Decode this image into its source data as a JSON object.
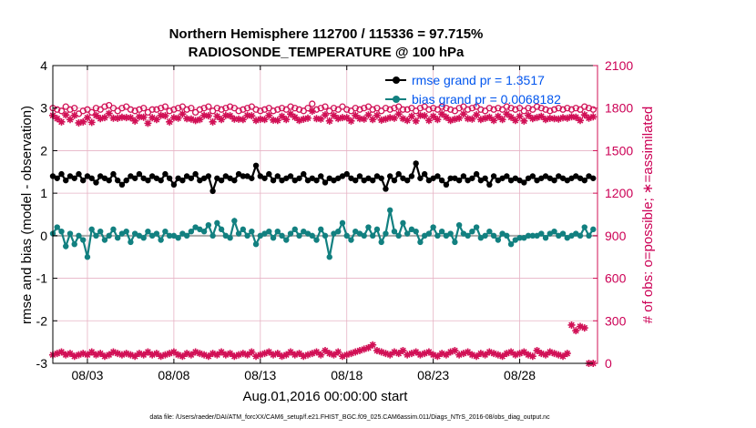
{
  "chart_data": {
    "type": "line",
    "title_line1": "Northern Hemisphere 112700 / 115336 = 97.715%",
    "title_line2": "RADIOSONDE_TEMPERATURE @ 100 hPa",
    "xlabel": "Aug.01,2016 00:00:00 start",
    "ylabel_left": "rmse and bias (model - observation)",
    "ylabel_right": "# of obs: o=possible; ∗=assimilated",
    "xlim": [
      0,
      31.5
    ],
    "ylim_left": [
      -3,
      4
    ],
    "ylim_right": [
      0,
      2100
    ],
    "x_ticks": [
      {
        "x": 2,
        "label": "08/03"
      },
      {
        "x": 7,
        "label": "08/08"
      },
      {
        "x": 12,
        "label": "08/13"
      },
      {
        "x": 17,
        "label": "08/18"
      },
      {
        "x": 22,
        "label": "08/23"
      },
      {
        "x": 27,
        "label": "08/28"
      }
    ],
    "y_ticks_left": [
      "-3",
      "-2",
      "-1",
      "0",
      "1",
      "2",
      "3",
      "4"
    ],
    "y_ticks_right": [
      "0",
      "300",
      "600",
      "900",
      "1200",
      "1500",
      "1800",
      "2100"
    ],
    "grid": true,
    "legend_position": "top-right",
    "colors": {
      "rmse": "#000000",
      "bias": "#128080",
      "obs": "#d11056",
      "zero_line": "#a9a9a9",
      "grid": "#e6b3c4"
    },
    "series": [
      {
        "name": "rmse grand pr = 1.3517",
        "axis": "left",
        "x_start": 0.0,
        "x_step": 0.25,
        "values": [
          1.4,
          1.35,
          1.45,
          1.3,
          1.4,
          1.35,
          1.45,
          1.3,
          1.4,
          1.35,
          1.25,
          1.4,
          1.35,
          1.3,
          1.45,
          1.3,
          1.2,
          1.3,
          1.4,
          1.35,
          1.45,
          1.35,
          1.3,
          1.4,
          1.35,
          1.3,
          1.45,
          1.35,
          1.2,
          1.35,
          1.3,
          1.4,
          1.35,
          1.45,
          1.3,
          1.35,
          1.4,
          1.05,
          1.35,
          1.3,
          1.4,
          1.35,
          1.3,
          1.45,
          1.4,
          1.4,
          1.35,
          1.65,
          1.4,
          1.35,
          1.45,
          1.3,
          1.4,
          1.3,
          1.35,
          1.4,
          1.3,
          1.35,
          1.45,
          1.3,
          1.35,
          1.3,
          1.4,
          1.25,
          1.35,
          1.3,
          1.35,
          1.4,
          1.45,
          1.35,
          1.3,
          1.4,
          1.3,
          1.35,
          1.3,
          1.4,
          1.35,
          1.1,
          1.4,
          1.3,
          1.45,
          1.35,
          1.3,
          1.4,
          1.7,
          1.35,
          1.45,
          1.3,
          1.35,
          1.4,
          1.3,
          1.2,
          1.35,
          1.35,
          1.3,
          1.4,
          1.3,
          1.35,
          1.45,
          1.3,
          1.35,
          1.2,
          1.4,
          1.3,
          1.35,
          1.4,
          1.3,
          1.35,
          1.3,
          1.25,
          1.35,
          1.4,
          1.3,
          1.35,
          1.4,
          1.35,
          1.3,
          1.4,
          1.35,
          1.3,
          1.35,
          1.4,
          1.35,
          1.3,
          1.4,
          1.35
        ]
      },
      {
        "name": "bias grand pr = 0.0068182",
        "axis": "left",
        "x_start": 0.0,
        "x_step": 0.25,
        "values": [
          0.05,
          0.2,
          0.1,
          -0.25,
          0.05,
          -0.2,
          0.0,
          -0.1,
          -0.5,
          0.15,
          0.0,
          0.1,
          -0.1,
          0.0,
          0.15,
          -0.05,
          0.05,
          0.1,
          -0.15,
          0.05,
          0.0,
          -0.05,
          0.1,
          0.0,
          0.05,
          -0.1,
          0.1,
          0.0,
          0.0,
          -0.05,
          0.05,
          0.0,
          0.1,
          0.2,
          0.15,
          0.1,
          0.25,
          0.0,
          0.3,
          0.15,
          0.0,
          -0.05,
          0.35,
          0.05,
          0.15,
          0.0,
          0.1,
          -0.2,
          0.0,
          0.05,
          0.1,
          -0.05,
          0.1,
          0.0,
          -0.1,
          0.05,
          0.15,
          0.0,
          0.1,
          0.05,
          0.0,
          -0.1,
          0.15,
          0.0,
          -0.5,
          0.05,
          0.1,
          0.3,
          0.0,
          -0.1,
          0.1,
          0.05,
          0.0,
          0.2,
          0.0,
          0.15,
          -0.15,
          0.05,
          0.6,
          0.1,
          0.0,
          0.3,
          0.05,
          0.15,
          0.1,
          -0.15,
          0.0,
          0.05,
          0.2,
          0.0,
          0.1,
          0.0,
          0.05,
          -0.15,
          0.25,
          0.05,
          0.0,
          0.1,
          0.2,
          -0.05,
          0.0,
          0.1,
          0.0,
          -0.1,
          0.05,
          0.0,
          -0.2,
          -0.1,
          -0.05,
          -0.05,
          0.0,
          0.0,
          0.0,
          0.05,
          -0.05,
          0.05,
          0.1,
          0.0,
          0.05,
          -0.05,
          0.0,
          0.05,
          0.0,
          0.2,
          0.0,
          0.15
        ]
      },
      {
        "name": "possible",
        "axis": "right",
        "x_start": 0.0,
        "x_step": 0.25,
        "values": [
          1800,
          1790,
          1780,
          1810,
          1790,
          1800,
          1760,
          1780,
          1790,
          1770,
          1800,
          1790,
          1810,
          1820,
          1800,
          1780,
          1800,
          1810,
          1790,
          1780,
          1790,
          1800,
          1770,
          1790,
          1790,
          1800,
          1810,
          1780,
          1790,
          1800,
          1810,
          1790,
          1800,
          1770,
          1790,
          1800,
          1810,
          1780,
          1800,
          1790,
          1800,
          1810,
          1800,
          1780,
          1790,
          1800,
          1810,
          1790,
          1780,
          1790,
          1800,
          1780,
          1790,
          1800,
          1790,
          1810,
          1800,
          1790,
          1780,
          1800,
          1830,
          1790,
          1800,
          1810,
          1780,
          1800,
          1790,
          1810,
          1790,
          1780,
          1800,
          1790,
          1800,
          1810,
          1790,
          1800,
          1780,
          1800,
          1790,
          1800,
          1810,
          1790,
          1790,
          1800,
          1780,
          1800,
          1810,
          1790,
          1800,
          1790,
          1810,
          1800,
          1790,
          1780,
          1800,
          1810,
          1790,
          1800,
          1810,
          1790,
          1780,
          1800,
          1790,
          1800,
          1790,
          1810,
          1800,
          1790,
          1800,
          1780,
          1800,
          1790,
          1810,
          1800,
          1790,
          1780,
          1790,
          1800,
          1790,
          1800,
          1790,
          1800,
          1790,
          1810,
          1800,
          1790
        ]
      },
      {
        "name": "assimilated",
        "axis": "right",
        "x_start": 0.0,
        "x_step": 0.25,
        "values": [
          60,
          70,
          80,
          60,
          70,
          50,
          60,
          70,
          60,
          80,
          60,
          70,
          50,
          60,
          80,
          70,
          60,
          70,
          60,
          50,
          70,
          60,
          80,
          60,
          70,
          50,
          60,
          70,
          80,
          60,
          50,
          70,
          60,
          80,
          70,
          60,
          50,
          70,
          60,
          80,
          60,
          70,
          50,
          60,
          70,
          60,
          80,
          50,
          60,
          70,
          80,
          60,
          70,
          50,
          60,
          80,
          60,
          70,
          50,
          60,
          70,
          80,
          60,
          90,
          70,
          60,
          80,
          50,
          60,
          70,
          80,
          90,
          100,
          110,
          130,
          90,
          80,
          70,
          60,
          80,
          70,
          90,
          60,
          70,
          80,
          60,
          70,
          80,
          60,
          50,
          70,
          60,
          80,
          90,
          60,
          70,
          80,
          60,
          50,
          70,
          60,
          80,
          70,
          60,
          50,
          70,
          80,
          60,
          70,
          80,
          60,
          50,
          90,
          70,
          60,
          80,
          70,
          60,
          50,
          70,
          270,
          230,
          260,
          250,
          0,
          0
        ]
      }
    ],
    "footnote": "data file: /Users/raeder/DAI/ATM_forcXX/CAM6_setup/f.e21.FHIST_BGC.f09_025.CAM6assim.011/Diags_NTrS_2016-08/obs_diag_output.nc"
  }
}
